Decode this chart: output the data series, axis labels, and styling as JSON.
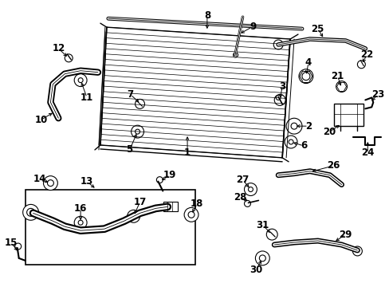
{
  "bg_color": "#ffffff",
  "line_color": "#000000",
  "label_color": "#000000",
  "label_fontsize": 8.5,
  "fig_width": 4.89,
  "fig_height": 3.6,
  "dpi": 100
}
